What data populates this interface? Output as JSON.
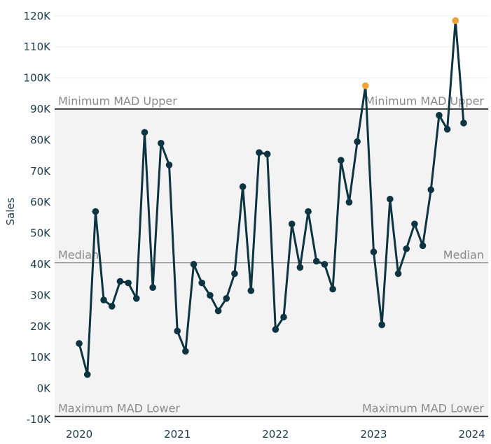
{
  "chart_data": {
    "type": "line",
    "ylabel": "Sales",
    "y_ticks": [
      "-10K",
      "0K",
      "10K",
      "20K",
      "30K",
      "40K",
      "50K",
      "60K",
      "70K",
      "80K",
      "90K",
      "100K",
      "110K",
      "120K"
    ],
    "x_ticks": [
      "2020",
      "2021",
      "2022",
      "2023",
      "2024"
    ],
    "ylim": [
      -10000,
      124000
    ],
    "xlim": [
      "2019-10-01",
      "2024-03-01"
    ],
    "grid": true,
    "band": {
      "upper": 90000,
      "lower": -9000
    },
    "reference_lines": [
      {
        "value": 90000,
        "label": "Minimum MAD Upper"
      },
      {
        "value": 40500,
        "label": "Median"
      },
      {
        "value": -9000,
        "label": "Maximum MAD Lower"
      }
    ],
    "series": [
      {
        "points": [
          {
            "x": "2020-01",
            "y": 14500
          },
          {
            "x": "2020-02",
            "y": 4500
          },
          {
            "x": "2020-03",
            "y": 57000
          },
          {
            "x": "2020-04",
            "y": 28500
          },
          {
            "x": "2020-05",
            "y": 26500
          },
          {
            "x": "2020-06",
            "y": 34500
          },
          {
            "x": "2020-07",
            "y": 34000
          },
          {
            "x": "2020-08",
            "y": 29000
          },
          {
            "x": "2020-09",
            "y": 82500
          },
          {
            "x": "2020-10",
            "y": 32500
          },
          {
            "x": "2020-11",
            "y": 79000
          },
          {
            "x": "2020-12",
            "y": 72000
          },
          {
            "x": "2021-01",
            "y": 18500
          },
          {
            "x": "2021-02",
            "y": 12000
          },
          {
            "x": "2021-03",
            "y": 40000
          },
          {
            "x": "2021-04",
            "y": 34000
          },
          {
            "x": "2021-05",
            "y": 30000
          },
          {
            "x": "2021-06",
            "y": 25000
          },
          {
            "x": "2021-07",
            "y": 29000
          },
          {
            "x": "2021-08",
            "y": 37000
          },
          {
            "x": "2021-09",
            "y": 65000
          },
          {
            "x": "2021-10",
            "y": 31500
          },
          {
            "x": "2021-11",
            "y": 76000
          },
          {
            "x": "2021-12",
            "y": 75500
          },
          {
            "x": "2022-01",
            "y": 19000
          },
          {
            "x": "2022-02",
            "y": 23000
          },
          {
            "x": "2022-03",
            "y": 53000
          },
          {
            "x": "2022-04",
            "y": 39000
          },
          {
            "x": "2022-05",
            "y": 57000
          },
          {
            "x": "2022-06",
            "y": 41000
          },
          {
            "x": "2022-07",
            "y": 40000
          },
          {
            "x": "2022-08",
            "y": 32000
          },
          {
            "x": "2022-09",
            "y": 73500
          },
          {
            "x": "2022-10",
            "y": 60000
          },
          {
            "x": "2022-11",
            "y": 79500
          },
          {
            "x": "2022-12",
            "y": 97500,
            "outlier": true
          },
          {
            "x": "2023-01",
            "y": 44000
          },
          {
            "x": "2023-02",
            "y": 20500
          },
          {
            "x": "2023-03",
            "y": 61000
          },
          {
            "x": "2023-04",
            "y": 37000
          },
          {
            "x": "2023-05",
            "y": 45000
          },
          {
            "x": "2023-06",
            "y": 53000
          },
          {
            "x": "2023-07",
            "y": 46000
          },
          {
            "x": "2023-08",
            "y": 64000
          },
          {
            "x": "2023-09",
            "y": 88000
          },
          {
            "x": "2023-10",
            "y": 83500
          },
          {
            "x": "2023-11",
            "y": 118500,
            "outlier": true
          },
          {
            "x": "2023-12",
            "y": 85500
          }
        ]
      }
    ],
    "colors": {
      "line": "#0d3440",
      "point": "#0d3440",
      "outlier": "#f0a236",
      "band": "#f3f3f3",
      "ref_line_bound": "#1a1a1a",
      "ref_line_median": "#8f8f8f",
      "grid": "#ececec",
      "text": "#1c3a4a",
      "ref_label": "#8a8a8a"
    }
  }
}
